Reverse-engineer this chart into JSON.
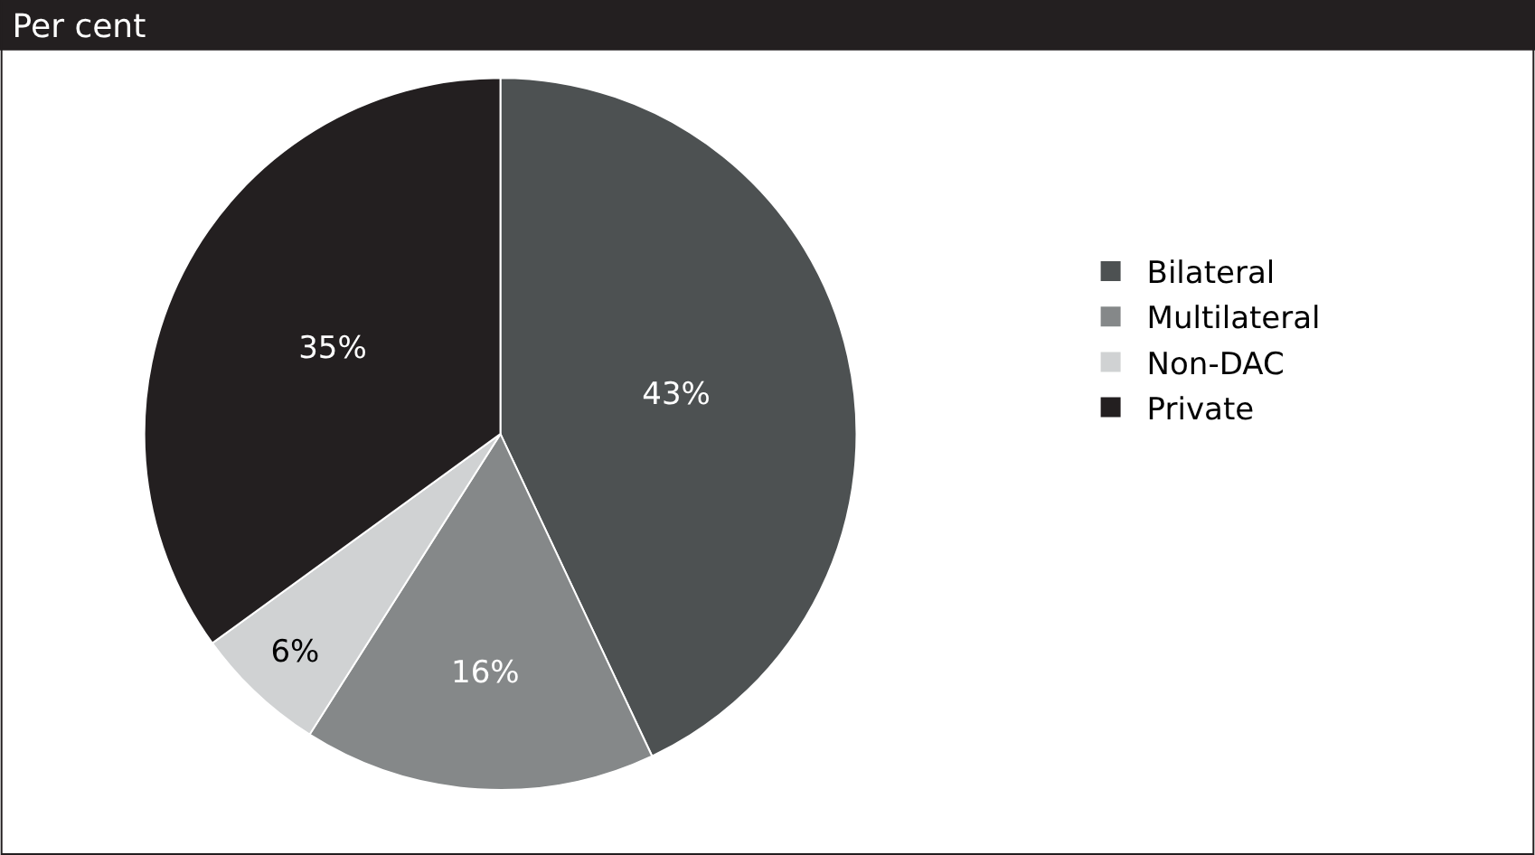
{
  "chart_data": {
    "type": "pie",
    "title": "Per cent",
    "categories": [
      "Bilateral",
      "Multilateral",
      "Non-DAC",
      "Private"
    ],
    "values": [
      43,
      16,
      6,
      35
    ],
    "colors": [
      "#4d5152",
      "#858889",
      "#d0d2d3",
      "#231f20"
    ],
    "value_labels": [
      "43%",
      "16%",
      "6%",
      "35%"
    ],
    "legend": "right"
  }
}
